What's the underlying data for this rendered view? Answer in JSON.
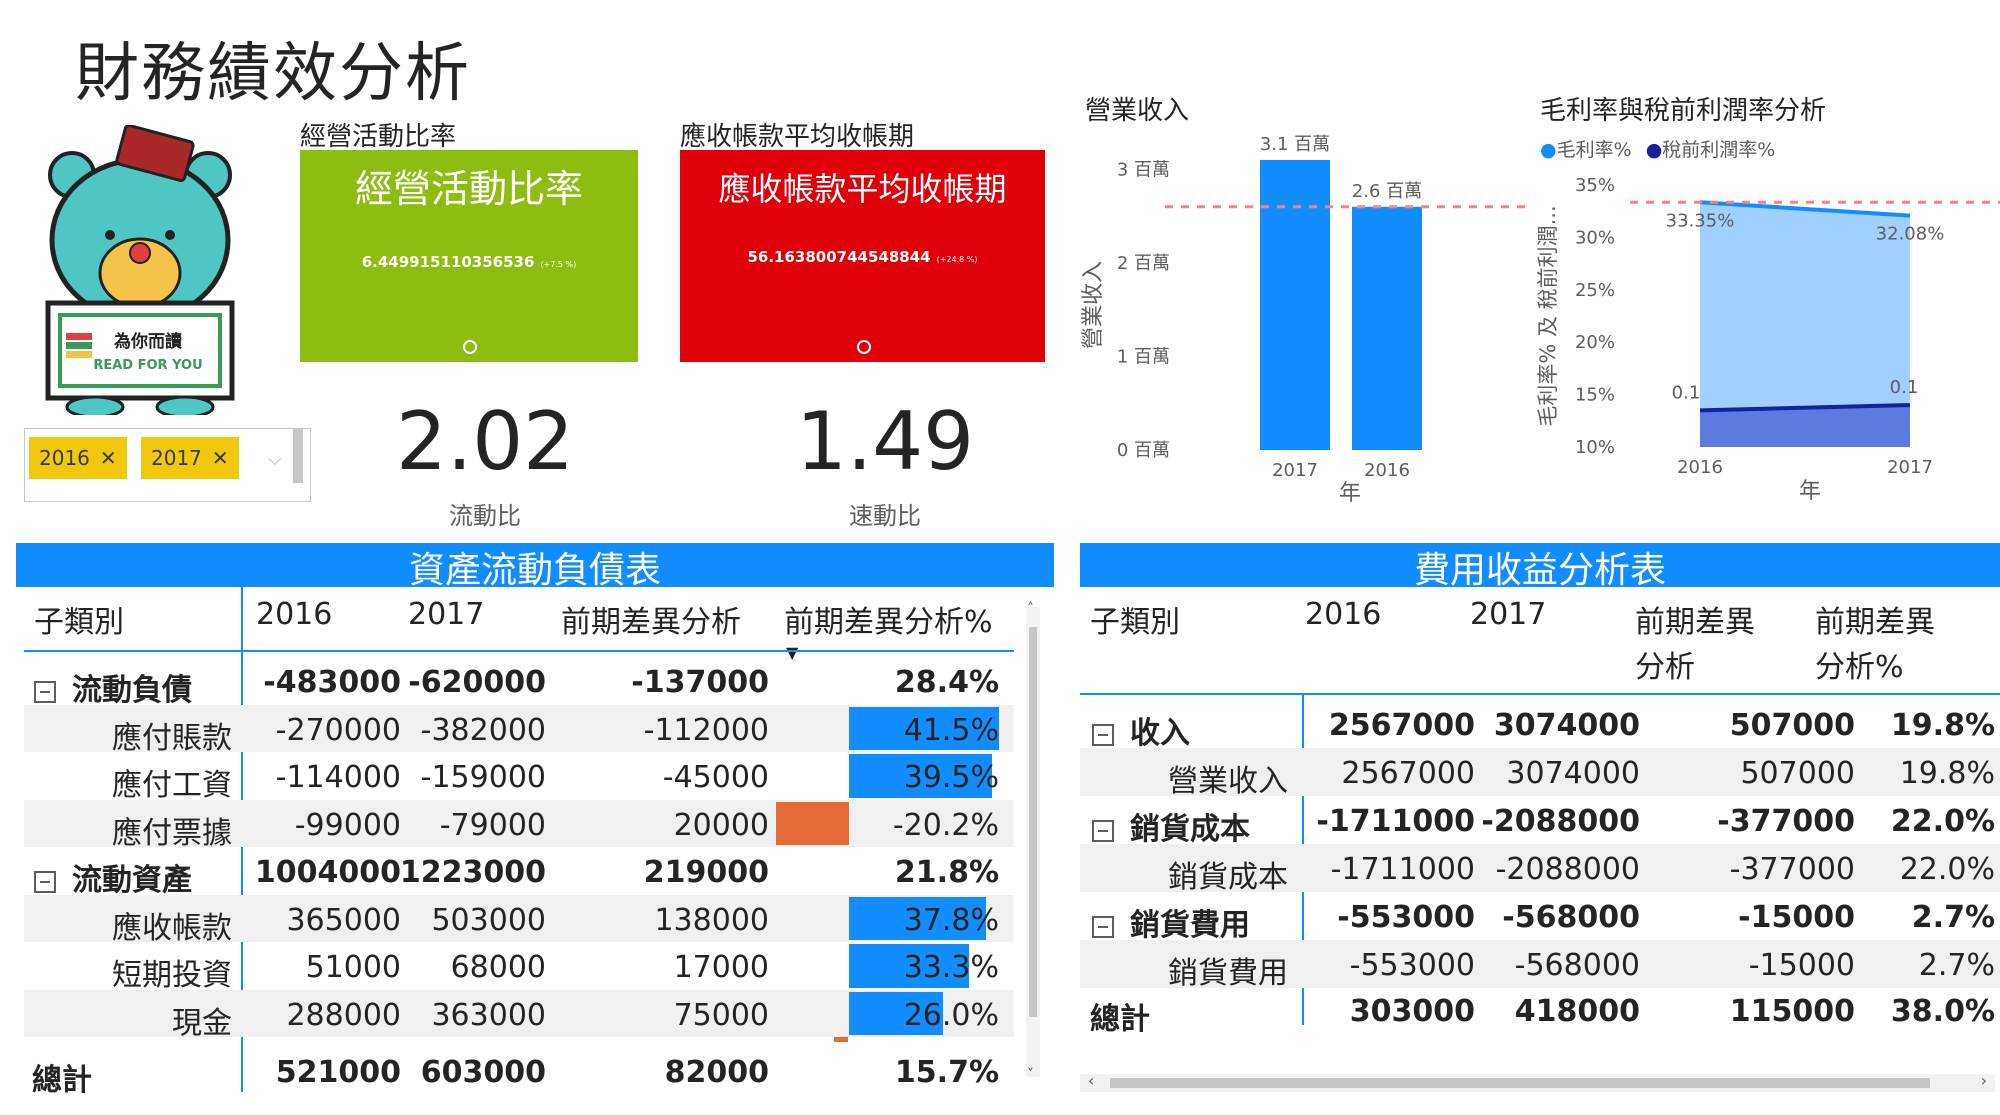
{
  "page": {
    "title": "財務績效分析"
  },
  "mascot": {
    "sign_cn": "為你而讀",
    "sign_en": "READ FOR YOU"
  },
  "slicer": {
    "chips": [
      "2016",
      "2017"
    ]
  },
  "cards": {
    "op_ratio": {
      "label": "經營活動比率",
      "big": "經營活動比率",
      "value": "6.449915110356536",
      "delta": "(+7.5 %)",
      "color": "#8fbc11"
    },
    "ar_days": {
      "label": "應收帳款平均收帳期",
      "big": "應收帳款平均收帳期",
      "value": "56.163800744548844",
      "delta": "(+24.8 %)",
      "color": "#e0000a"
    }
  },
  "kpis": {
    "current_ratio": {
      "value": "2.02",
      "label": "流動比"
    },
    "quick_ratio": {
      "value": "1.49",
      "label": "速動比"
    }
  },
  "chart_data": [
    {
      "type": "bar",
      "title": "營業收入",
      "xlabel": "年",
      "ylabel": "營業收入",
      "categories": [
        "2017",
        "2016"
      ],
      "values": [
        3.1,
        2.6
      ],
      "data_labels": [
        "3.1 百萬",
        "2.6 百萬"
      ],
      "ylim": [
        0,
        3.1
      ],
      "yticks": [
        0,
        1,
        2,
        3
      ],
      "ytick_labels": [
        "0 百萬",
        "1 百萬",
        "2 百萬",
        "3 百萬"
      ],
      "reference_line": 2.6,
      "grid": false,
      "color": "#118dff"
    },
    {
      "type": "area",
      "title": "毛利率與稅前利潤率分析",
      "xlabel": "年",
      "ylabel": "毛利率% 及 稅前利潤...",
      "x": [
        "2016",
        "2017"
      ],
      "series": [
        {
          "name": "毛利率%",
          "values": [
            33.35,
            32.08
          ],
          "labels": [
            "33.35%",
            "32.08%"
          ],
          "color": "#118dff"
        },
        {
          "name": "稅前利潤率%",
          "values": [
            13.5,
            14.0
          ],
          "labels": [
            "0.1",
            "0.1"
          ],
          "color": "#12239e"
        }
      ],
      "ylim": [
        10,
        35
      ],
      "yticks": [
        10,
        15,
        20,
        25,
        30,
        35
      ],
      "ytick_labels": [
        "10%",
        "15%",
        "20%",
        "25%",
        "30%",
        "35%"
      ],
      "reference_line": 33.35,
      "legend": "top-left"
    }
  ],
  "balance": {
    "title": "資產流動負債表",
    "headers": [
      "子類別",
      "2016",
      "2017",
      "前期差異分析",
      "前期差異分析%"
    ],
    "rows": [
      {
        "label": "流動負債",
        "v2016": "-483000",
        "v2017": "-620000",
        "diff": "-137000",
        "pct": "28.4%",
        "pctv": 0,
        "group": true
      },
      {
        "label": "應付賬款",
        "v2016": "-270000",
        "v2017": "-382000",
        "diff": "-112000",
        "pct": "41.5%",
        "pctv": 41.5,
        "group": false
      },
      {
        "label": "應付工資",
        "v2016": "-114000",
        "v2017": "-159000",
        "diff": "-45000",
        "pct": "39.5%",
        "pctv": 39.5,
        "group": false
      },
      {
        "label": "應付票據",
        "v2016": "-99000",
        "v2017": "-79000",
        "diff": "20000",
        "pct": "-20.2%",
        "pctv": -20.2,
        "group": false
      },
      {
        "label": "流動資產",
        "v2016": "1004000",
        "v2017": "1223000",
        "diff": "219000",
        "pct": "21.8%",
        "pctv": 0,
        "group": true
      },
      {
        "label": "應收帳款",
        "v2016": "365000",
        "v2017": "503000",
        "diff": "138000",
        "pct": "37.8%",
        "pctv": 37.8,
        "group": false
      },
      {
        "label": "短期投資",
        "v2016": "51000",
        "v2017": "68000",
        "diff": "17000",
        "pct": "33.3%",
        "pctv": 33.3,
        "group": false
      },
      {
        "label": "現金",
        "v2016": "288000",
        "v2017": "363000",
        "diff": "75000",
        "pct": "26.0%",
        "pctv": 26.0,
        "group": false
      }
    ],
    "total": {
      "label": "總計",
      "v2016": "521000",
      "v2017": "603000",
      "diff": "82000",
      "pct": "15.7%"
    }
  },
  "expense": {
    "title": "費用收益分析表",
    "headers": [
      "子類別",
      "2016",
      "2017",
      "前期差異",
      "分析",
      "前期差異",
      "分析%"
    ],
    "rows": [
      {
        "label": "收入",
        "v2016": "2567000",
        "v2017": "3074000",
        "diff": "507000",
        "pct": "19.8%",
        "group": true
      },
      {
        "label": "營業收入",
        "v2016": "2567000",
        "v2017": "3074000",
        "diff": "507000",
        "pct": "19.8%",
        "group": false
      },
      {
        "label": "銷貨成本",
        "v2016": "-1711000",
        "v2017": "-2088000",
        "diff": "-377000",
        "pct": "22.0%",
        "group": true
      },
      {
        "label": "銷貨成本",
        "v2016": "-1711000",
        "v2017": "-2088000",
        "diff": "-377000",
        "pct": "22.0%",
        "group": false
      },
      {
        "label": "銷貨費用",
        "v2016": "-553000",
        "v2017": "-568000",
        "diff": "-15000",
        "pct": "2.7%",
        "group": true
      },
      {
        "label": "銷貨費用",
        "v2016": "-553000",
        "v2017": "-568000",
        "diff": "-15000",
        "pct": "2.7%",
        "group": false
      }
    ],
    "total": {
      "label": "總計",
      "v2016": "303000",
      "v2017": "418000",
      "diff": "115000",
      "pct": "38.0%"
    }
  }
}
